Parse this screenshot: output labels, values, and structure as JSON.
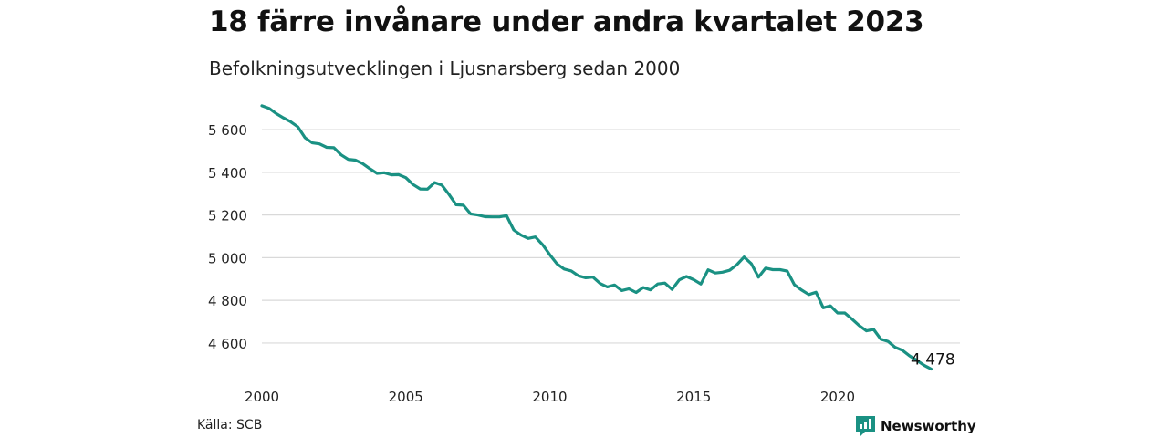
{
  "header": {
    "title": "18 färre invånare under andra kvartalet 2023",
    "subtitle": "Befolkningsutvecklingen i Ljusnarsberg sedan 2000"
  },
  "footer": {
    "source": "Källa: SCB",
    "brand": "Newsworthy",
    "brand_icon": "bar-chart-logo-icon"
  },
  "colors": {
    "line": "#1a9183",
    "grid": "#d9d9d9",
    "brand": "#1a9183"
  },
  "chart_data": {
    "type": "line",
    "x_unit": "year",
    "y_unit": "invånare",
    "xlim": [
      2000,
      2024.25
    ],
    "ylim": [
      4480,
      5720
    ],
    "x_ticks": [
      2000,
      2005,
      2010,
      2015,
      2020
    ],
    "x_tick_labels": [
      "2000",
      "2005",
      "2010",
      "2015",
      "2020"
    ],
    "y_ticks": [
      4600,
      4800,
      5000,
      5200,
      5400,
      5600
    ],
    "y_tick_labels": [
      "4 600",
      "4 800",
      "5 000",
      "5 200",
      "5 400",
      "5 600"
    ],
    "grid": true,
    "legend": "none",
    "series": [
      {
        "quarter_start": "2000Q1",
        "values": [
          5712,
          5700,
          5675,
          5655,
          5637,
          5613,
          5562,
          5538,
          5533,
          5517,
          5515,
          5482,
          5461,
          5457,
          5441,
          5417,
          5395,
          5398,
          5388,
          5389,
          5375,
          5343,
          5322,
          5321,
          5352,
          5340,
          5296,
          5248,
          5246,
          5205,
          5200,
          5192,
          5191,
          5191,
          5197,
          5130,
          5106,
          5090,
          5097,
          5061,
          5014,
          4971,
          4947,
          4938,
          4915,
          4906,
          4909,
          4879,
          4863,
          4872,
          4846,
          4854,
          4837,
          4860,
          4849,
          4877,
          4881,
          4851,
          4896,
          4912,
          4897,
          4877,
          4943,
          4928,
          4932,
          4941,
          4967,
          5003,
          4972,
          4909,
          4951,
          4944,
          4944,
          4937,
          4873,
          4848,
          4827,
          4838,
          4765,
          4774,
          4741,
          4741,
          4712,
          4682,
          4657,
          4664,
          4618,
          4608,
          4580,
          4566,
          4540,
          4519,
          4496,
          4478
        ]
      }
    ],
    "annotations": [
      {
        "text": "4 478",
        "x": 2023.5,
        "y": 4478
      }
    ]
  }
}
